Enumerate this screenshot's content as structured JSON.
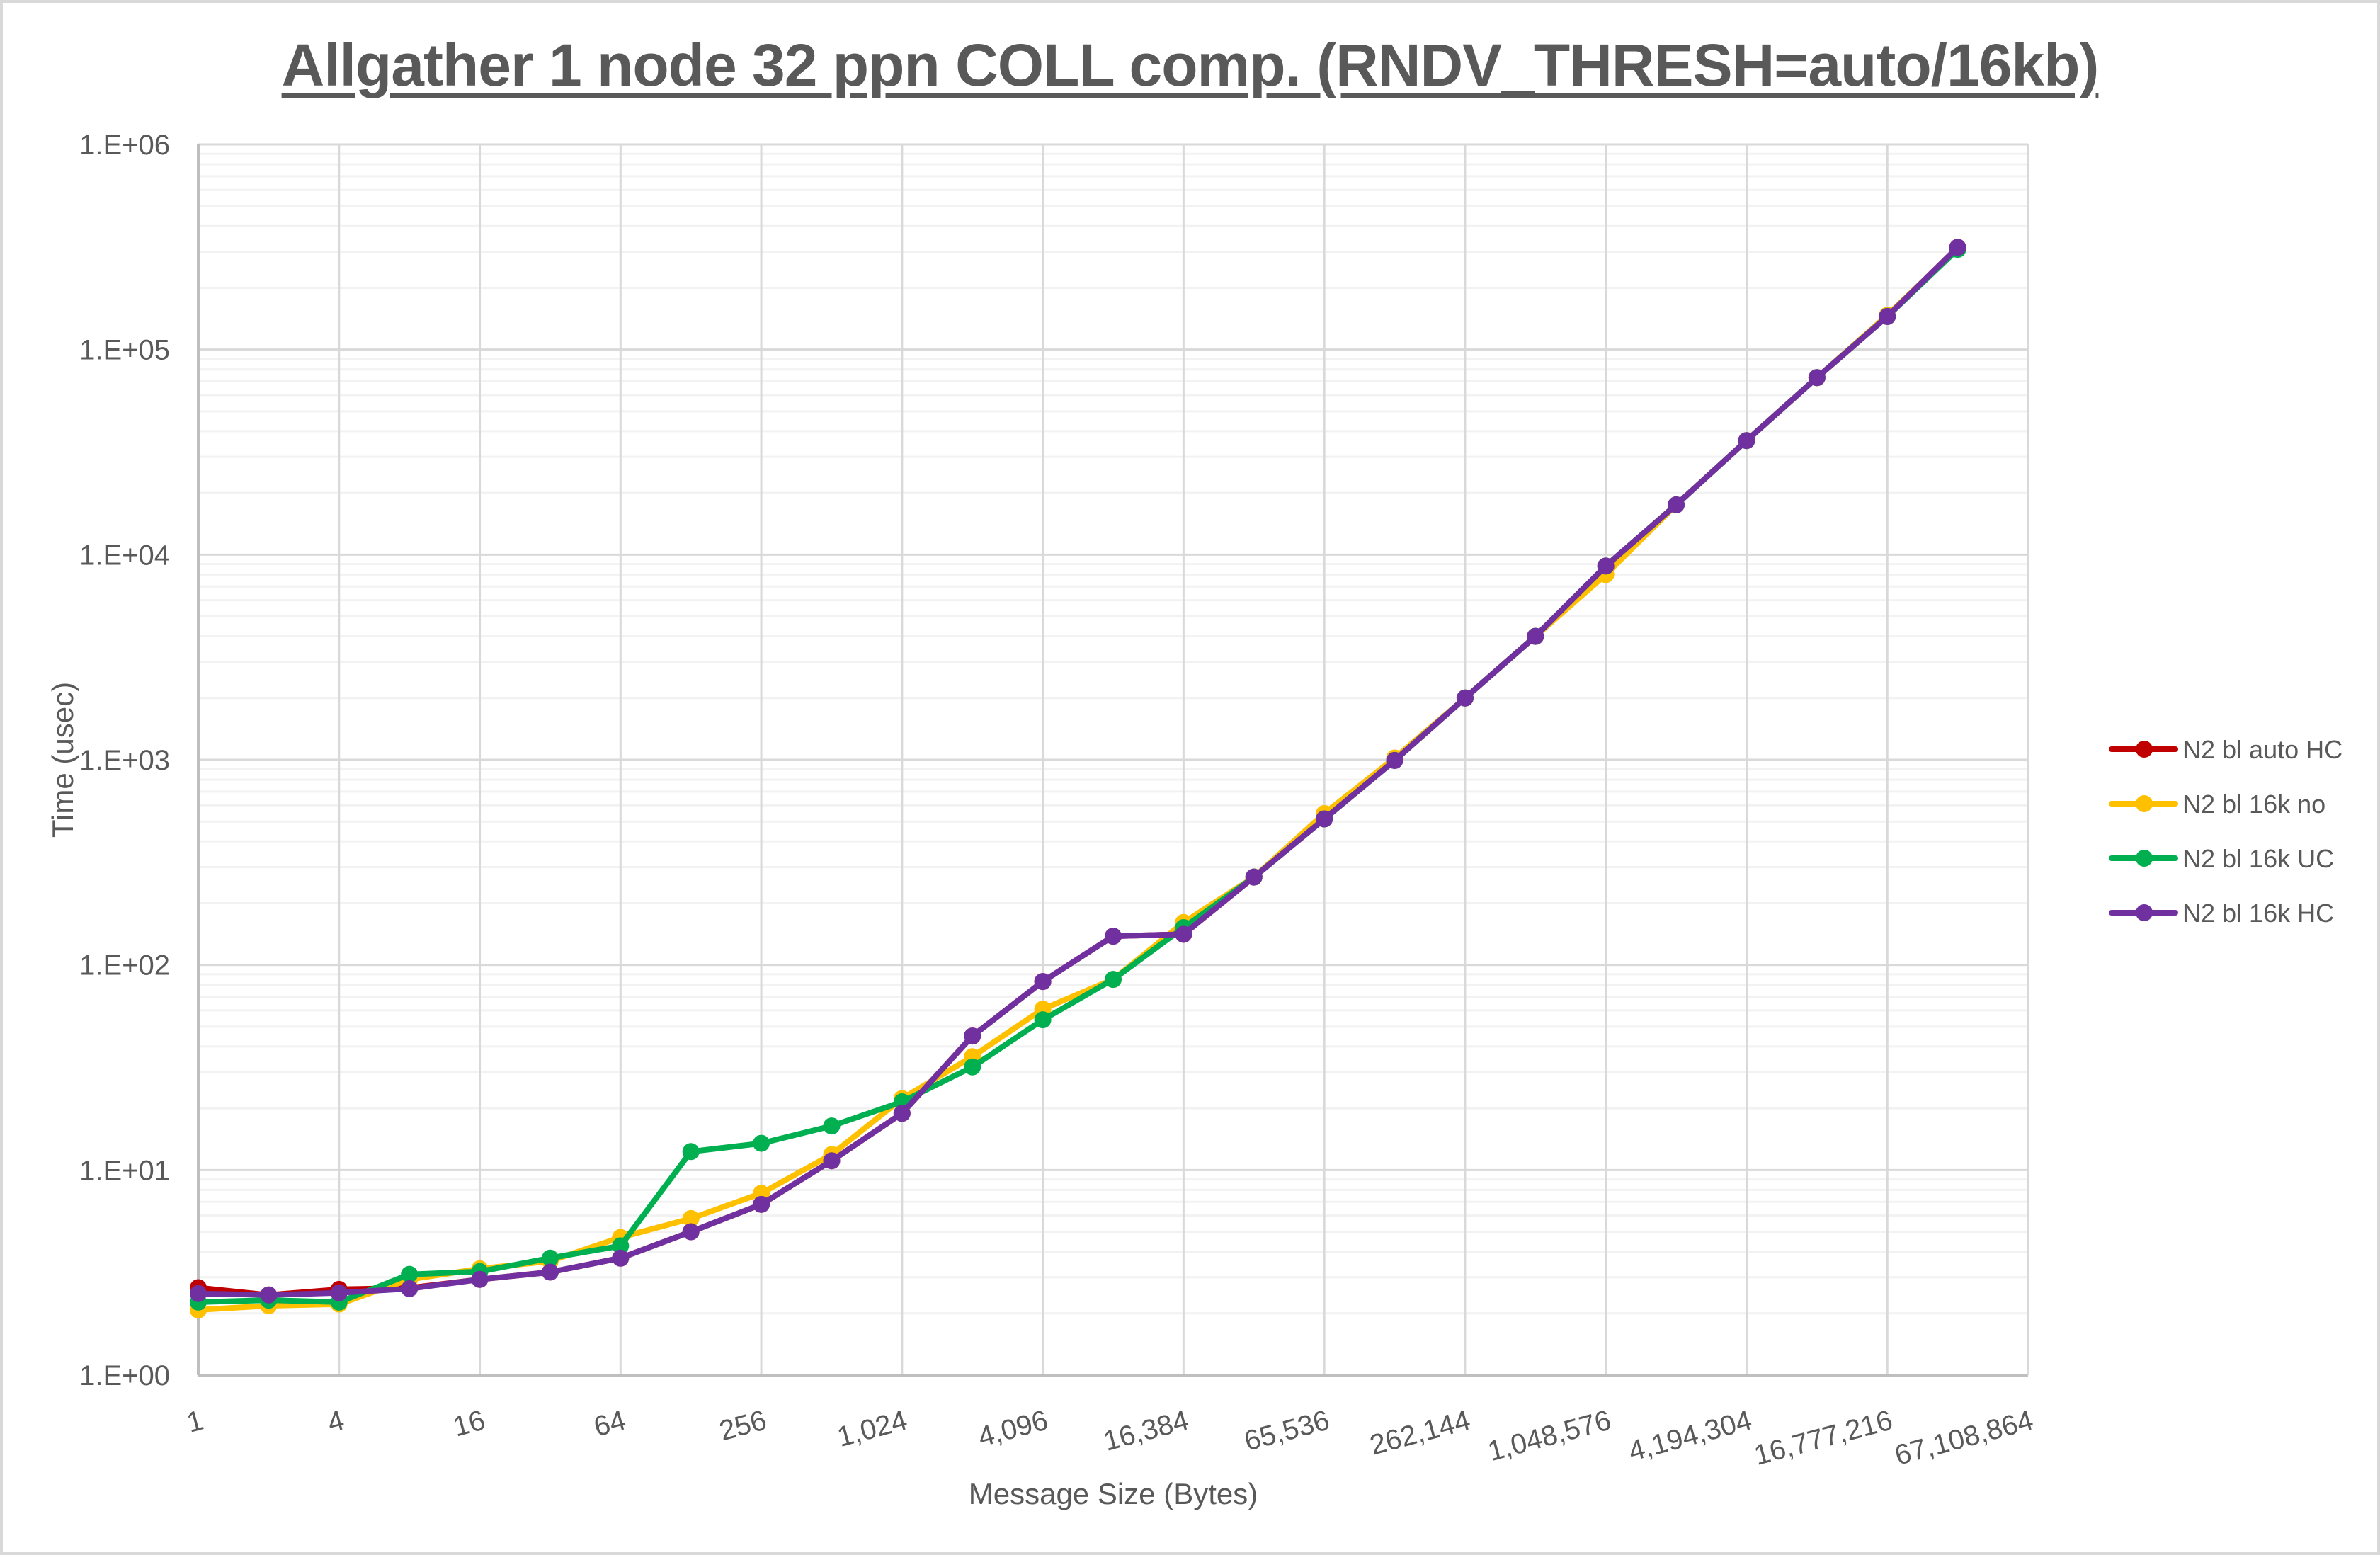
{
  "chart_data": {
    "type": "line",
    "title": "Allgather 1 node 32 ppn COLL comp. (RNDV_THRESH=auto/16kb)",
    "xlabel": "Message Size (Bytes)",
    "ylabel": "Time (usec)",
    "xscale": "log2",
    "yscale": "log10",
    "ylim": [
      1,
      1000000
    ],
    "xlim": [
      1,
      67108864
    ],
    "x_tick_labels": [
      "1",
      "4",
      "16",
      "64",
      "256",
      "1,024",
      "4,096",
      "16,384",
      "65,536",
      "262,144",
      "1,048,576",
      "4,194,304",
      "16,777,216",
      "67,108,864"
    ],
    "y_tick_labels": [
      "1.E+00",
      "1.E+01",
      "1.E+02",
      "1.E+03",
      "1.E+04",
      "1.E+05",
      "1.E+06"
    ],
    "grid": true,
    "legend_position": "right",
    "x": [
      1,
      2,
      4,
      8,
      16,
      32,
      64,
      128,
      256,
      512,
      1024,
      2048,
      4096,
      8192,
      16384,
      32768,
      65536,
      131072,
      262144,
      524288,
      1048576,
      2097152,
      4194304,
      8388608,
      16777216,
      33554432
    ],
    "series": [
      {
        "name": "N2 bl auto HC",
        "color": "#c00000",
        "values": [
          2.67,
          2.46,
          2.62,
          2.66,
          2.93,
          3.18,
          3.72,
          5.0,
          6.8,
          11.1,
          18.9,
          45,
          83,
          138,
          141,
          268,
          515,
          993,
          2000,
          4000,
          8800,
          17500,
          36000,
          73000,
          145000,
          315000
        ]
      },
      {
        "name": "N2 bl 16k no",
        "color": "#ffc000",
        "values": [
          2.08,
          2.18,
          2.22,
          2.93,
          3.3,
          3.6,
          4.69,
          5.8,
          7.7,
          11.9,
          22.3,
          35.7,
          60.9,
          85,
          161,
          268,
          547,
          1020,
          2000,
          4000,
          8000,
          17500,
          36000,
          73000,
          147000,
          312000
        ]
      },
      {
        "name": "N2 bl 16k UC",
        "color": "#00b050",
        "values": [
          2.27,
          2.32,
          2.27,
          3.1,
          3.2,
          3.72,
          4.27,
          12.3,
          13.5,
          16.4,
          21.5,
          31.8,
          54,
          85,
          152,
          268,
          515,
          993,
          2000,
          4000,
          8800,
          17500,
          36000,
          73000,
          145000,
          308000
        ]
      },
      {
        "name": "N2 bl 16k HC",
        "color": "#7030a0",
        "values": [
          2.5,
          2.46,
          2.52,
          2.64,
          2.93,
          3.18,
          3.72,
          5.0,
          6.8,
          11.1,
          18.9,
          45,
          83,
          138,
          141,
          268,
          515,
          993,
          2000,
          4000,
          8800,
          17500,
          36000,
          73000,
          145000,
          315000
        ]
      }
    ]
  },
  "legend": {
    "items": [
      {
        "label": "N2 bl auto HC",
        "color": "#c00000"
      },
      {
        "label": "N2 bl 16k no",
        "color": "#ffc000"
      },
      {
        "label": "N2 bl 16k UC",
        "color": "#00b050"
      },
      {
        "label": "N2 bl 16k HC",
        "color": "#7030a0"
      }
    ]
  },
  "colors": {
    "text": "#595959",
    "major_grid": "#d9d9d9",
    "minor_grid": "#f2f2f2",
    "axis": "#bfbfbf"
  }
}
